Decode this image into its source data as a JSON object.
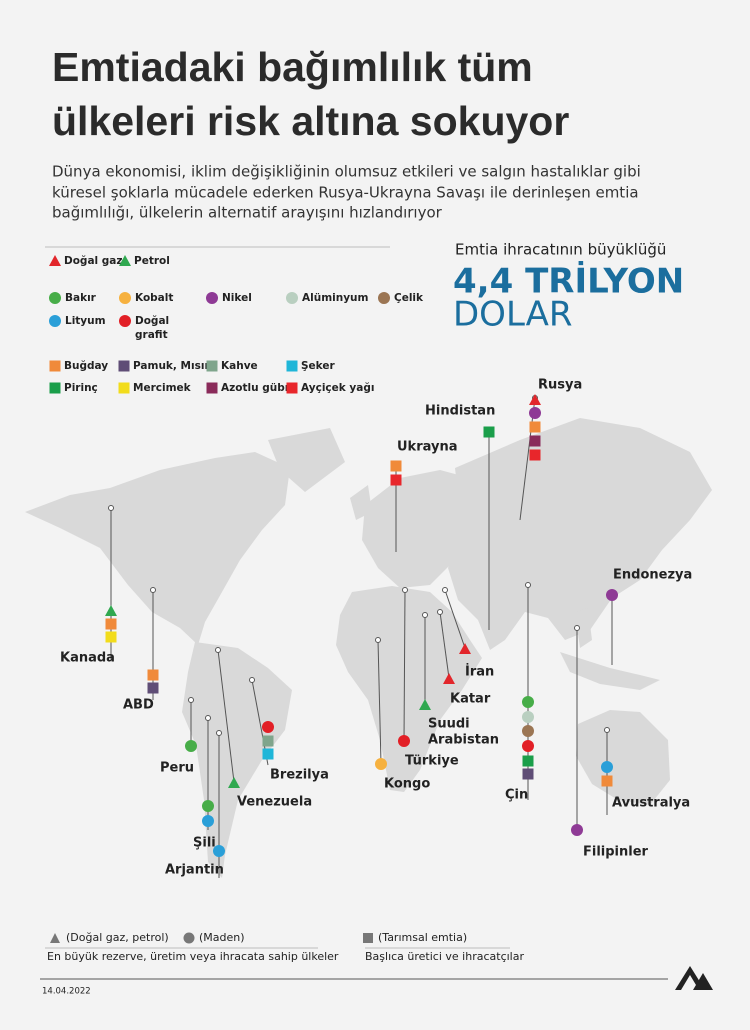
{
  "header": {
    "title": [
      "Emtiadaki bağımlılık tüm",
      "ülkeleri risk altına sokuyor"
    ],
    "subtitle": [
      "Dünya ekonomisi, iklim değişikliğinin olumsuz etkileri ve salgın hastalıklar gibi",
      "küresel şoklarla mücadele ederken Rusya-Ukrayna Savaşı ile derinleşen emtia",
      "bağımlılığı, ülkelerin alternatif arayışını hızlandırıyor"
    ]
  },
  "legend": {
    "energy": [
      "Doğal gaz",
      "Petrol"
    ],
    "mining": [
      "Bakır",
      "Kobalt",
      "Nikel",
      "Alüminyum",
      "Çelik",
      "Lityum",
      [
        "Doğal",
        "grafit"
      ]
    ],
    "agriculture": [
      "Buğday",
      "Pamuk, Mısır",
      "Kahve",
      "Şeker",
      "Pirinç",
      "Mercimek",
      "Azotlu gübre",
      "Ayçiçek yağı"
    ]
  },
  "stat": {
    "label": "Emtia ihracatının büyüklüğü",
    "value": "4,4 TRİLYON",
    "unit": "DOLAR"
  },
  "countries": [
    [
      "Rusya"
    ],
    [
      "Hindistan"
    ],
    [
      "Ukrayna"
    ],
    [
      "Endonezya"
    ],
    [
      "Kanada"
    ],
    [
      "ABD"
    ],
    [
      "İran"
    ],
    [
      "Katar"
    ],
    [
      "Suudi",
      "Arabistan"
    ],
    [
      "Türkiye"
    ],
    [
      "Kongo"
    ],
    [
      "Çin"
    ],
    [
      "Avustralya"
    ],
    [
      "Filipinler"
    ],
    [
      "Brezilya"
    ],
    [
      "Venezuela"
    ],
    [
      "Peru"
    ],
    [
      "Şili"
    ],
    [
      "Arjantin"
    ]
  ],
  "footer": {
    "key_energy": "(Doğal gaz, petrol)",
    "key_mining": "(Maden)",
    "key_agriculture": "(Tarımsal emtia)",
    "note_left": "En büyük rezerve, üretim veya ihracata sahip ülkeler",
    "note_right": "Başlıca üretici ve ihracatçılar",
    "date": "14.04.2022"
  }
}
